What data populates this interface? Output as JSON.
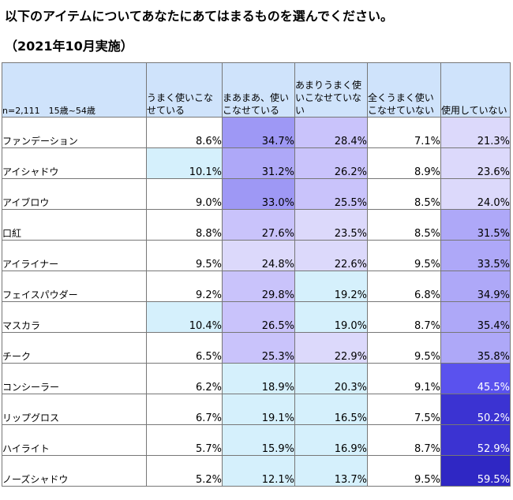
{
  "title": "以下のアイテムについてあなたにあてはまるものを選んでください。",
  "subtitle": "（2021年10月実施）",
  "sample_note": "n=2,111　15歳~54歳",
  "colors": {
    "header_bg": "#cfe3fb",
    "low_bg": "#d5f0fc",
    "high_scale": [
      "#ffffff",
      "#dcd9fb",
      "#c9c3fb",
      "#aea8f8",
      "#9e98f5",
      "#5a52ee",
      "#3b33d2",
      "#2f27c4"
    ]
  },
  "chart_data": {
    "type": "table",
    "columns": [
      "うまく使いこなせている",
      "まあまあ、使いこなせている",
      "あまりうまく使いこなせていない",
      "全くうまく使いこなせていない",
      "使用していない"
    ],
    "rows": [
      {
        "item": "ファンデーション",
        "values": [
          "8.6%",
          "34.7%",
          "28.4%",
          "7.1%",
          "21.3%"
        ]
      },
      {
        "item": "アイシャドウ",
        "values": [
          "10.1%",
          "31.2%",
          "26.2%",
          "8.9%",
          "23.6%"
        ]
      },
      {
        "item": "アイブロウ",
        "values": [
          "9.0%",
          "33.0%",
          "25.5%",
          "8.5%",
          "24.0%"
        ]
      },
      {
        "item": "口紅",
        "values": [
          "8.8%",
          "27.6%",
          "23.5%",
          "8.5%",
          "31.5%"
        ]
      },
      {
        "item": "アイライナー",
        "values": [
          "9.5%",
          "24.8%",
          "22.6%",
          "9.5%",
          "33.5%"
        ]
      },
      {
        "item": "フェイスパウダー",
        "values": [
          "9.2%",
          "29.8%",
          "19.2%",
          "6.8%",
          "34.9%"
        ]
      },
      {
        "item": "マスカラ",
        "values": [
          "10.4%",
          "26.5%",
          "19.0%",
          "8.7%",
          "35.4%"
        ]
      },
      {
        "item": "チーク",
        "values": [
          "6.5%",
          "25.3%",
          "22.9%",
          "9.5%",
          "35.8%"
        ]
      },
      {
        "item": "コンシーラー",
        "values": [
          "6.2%",
          "18.9%",
          "20.3%",
          "9.1%",
          "45.5%"
        ]
      },
      {
        "item": "リップグロス",
        "values": [
          "6.7%",
          "19.1%",
          "16.5%",
          "7.5%",
          "50.2%"
        ]
      },
      {
        "item": "ハイライト",
        "values": [
          "5.7%",
          "15.9%",
          "16.9%",
          "8.7%",
          "52.9%"
        ]
      },
      {
        "item": "ノーズシャドウ",
        "values": [
          "5.2%",
          "12.1%",
          "13.7%",
          "9.5%",
          "59.5%"
        ]
      }
    ]
  }
}
